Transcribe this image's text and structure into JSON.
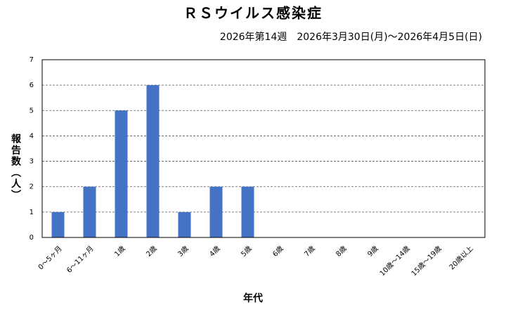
{
  "chart_data": {
    "type": "bar",
    "title": "ＲＳウイルス感染症",
    "subtitle": "2026年第14週　2026年3月30日(月)～2026年4月5日(日)",
    "x_label": "年代",
    "y_label": "報告数（人）",
    "categories": [
      "0～5ヶ月",
      "6～11ヶ月",
      "1歳",
      "2歳",
      "3歳",
      "4歳",
      "5歳",
      "6歳",
      "7歳",
      "8歳",
      "9歳",
      "10歳～14歳",
      "15歳～19歳",
      "20歳以上"
    ],
    "values": [
      1,
      2,
      5,
      6,
      1,
      2,
      2,
      0,
      0,
      0,
      0,
      0,
      0,
      0
    ],
    "color": "#4472c4",
    "ylim": [
      0,
      7
    ],
    "yticks": [
      0,
      1,
      2,
      3,
      4,
      5,
      6,
      7
    ],
    "grid": true
  }
}
